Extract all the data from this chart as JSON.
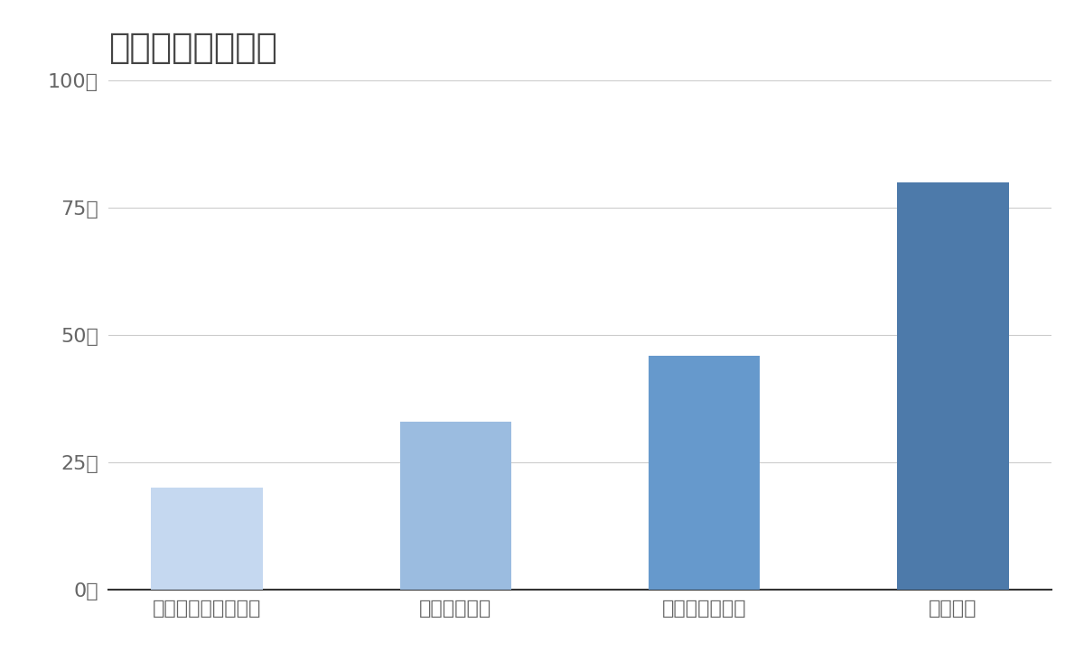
{
  "title": "競合含む年間売上",
  "categories": [
    "ファーストロジック",
    "アールエイジ",
    "グランディーズ",
    "アズーム"
  ],
  "values": [
    20,
    33,
    46,
    80
  ],
  "bar_colors": [
    "#c5d8f0",
    "#9bbce0",
    "#6699cc",
    "#4d7aaa"
  ],
  "ylim": [
    0,
    100
  ],
  "yticks": [
    0,
    25,
    50,
    75,
    100
  ],
  "ytick_labels": [
    "0億",
    "25億",
    "50億",
    "75億",
    "100億"
  ],
  "title_fontsize": 28,
  "tick_fontsize": 16,
  "background_color": "#ffffff",
  "grid_color": "#cccccc",
  "axis_label_color": "#666666"
}
